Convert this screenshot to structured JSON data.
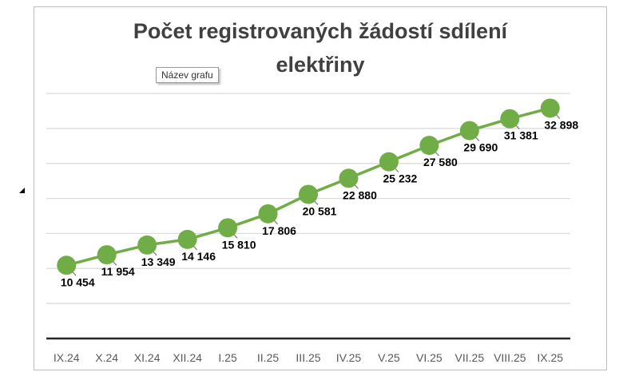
{
  "chart_data": {
    "type": "line",
    "title_lines": [
      "Počet registrovaných žádostí sdílení",
      "elektřiny"
    ],
    "categories": [
      "IX.24",
      "X.24",
      "XI.24",
      "XII.24",
      "I.25",
      "II.25",
      "III.25",
      "IV.25",
      "V.25",
      "VI.25",
      "VII.25",
      "VIII.25",
      "IX.25"
    ],
    "values": [
      10454,
      11954,
      13349,
      14146,
      15810,
      17806,
      20581,
      22880,
      25232,
      27580,
      29690,
      31381,
      32898
    ],
    "data_labels": [
      "10 454",
      "11 954",
      "13 349",
      "14 146",
      "15 810",
      "17 806",
      "20 581",
      "22 880",
      "25 232",
      "27 580",
      "29 690",
      "31 381",
      "32 898"
    ],
    "ylim": [
      0,
      35000
    ],
    "gridlines": true,
    "xlabel": "",
    "ylabel": "",
    "colors": {
      "line": "#70AD47",
      "marker": "#70AD47",
      "grid": "#d9d9d9",
      "axis": "#262626",
      "leader": "#7f7f7f"
    }
  },
  "ui": {
    "tooltip": "Název grafu"
  }
}
